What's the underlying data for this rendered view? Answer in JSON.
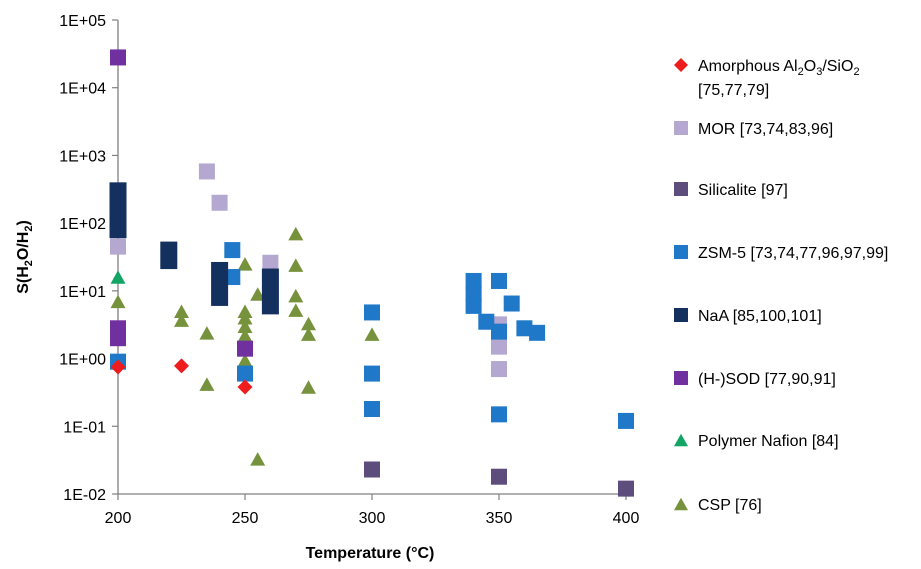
{
  "chart_data": {
    "type": "scatter",
    "title": "",
    "xlabel": "Temperature (°C)",
    "ylabel_parts": [
      "S(H",
      "2",
      "O/H",
      "2",
      ")"
    ],
    "xlim": [
      200,
      400
    ],
    "ylim": [
      0.01,
      100000
    ],
    "yscale": "log",
    "grid": false,
    "legend_position": "right",
    "x_ticks": [
      {
        "value": 200,
        "label": "200"
      },
      {
        "value": 250,
        "label": "250"
      },
      {
        "value": 300,
        "label": "300"
      },
      {
        "value": 350,
        "label": "350"
      },
      {
        "value": 400,
        "label": "400"
      }
    ],
    "y_ticks": [
      {
        "value": 0.01,
        "label": "1E-02"
      },
      {
        "value": 0.1,
        "label": "1E-01"
      },
      {
        "value": 1,
        "label": "1E+00"
      },
      {
        "value": 10,
        "label": "1E+01"
      },
      {
        "value": 100,
        "label": "1E+02"
      },
      {
        "value": 1000,
        "label": "1E+03"
      },
      {
        "value": 10000,
        "label": "1E+04"
      },
      {
        "value": 100000,
        "label": "1E+05"
      }
    ],
    "series": [
      {
        "id": "amorphous",
        "marker": "diamond",
        "color": "#ee1c1c",
        "legend_parts": [
          {
            "t": "Amorphous  Al",
            "sub": false
          },
          {
            "t": "2",
            "sub": true
          },
          {
            "t": "O",
            "sub": false
          },
          {
            "t": "3",
            "sub": true
          },
          {
            "t": "/SiO",
            "sub": false
          },
          {
            "t": "2",
            "sub": true
          }
        ],
        "legend_line2": "[75,77,79]",
        "points": [
          [
            200,
            0.75
          ],
          [
            225,
            0.78
          ],
          [
            250,
            0.38
          ]
        ]
      },
      {
        "id": "mor",
        "name": "MOR [73,74,83,96]",
        "marker": "square",
        "color": "#b4a7d0",
        "points": [
          [
            200,
            45
          ],
          [
            235,
            580
          ],
          [
            240,
            200
          ],
          [
            260,
            26
          ],
          [
            350,
            3.2
          ],
          [
            350,
            1.5
          ],
          [
            350,
            0.7
          ]
        ]
      },
      {
        "id": "silicalite",
        "name": "Silicalite [97]",
        "marker": "square",
        "color": "#5d4d7d",
        "points": [
          [
            300,
            0.023
          ],
          [
            350,
            0.018
          ],
          [
            400,
            0.012
          ]
        ]
      },
      {
        "id": "zsm5",
        "name": "ZSM-5 [73,74,77,96,97,99]",
        "marker": "square",
        "color": "#1f78c8",
        "points": [
          [
            200,
            0.9
          ],
          [
            245,
            40
          ],
          [
            245,
            16
          ],
          [
            250,
            0.6
          ],
          [
            300,
            4.8
          ],
          [
            300,
            0.6
          ],
          [
            300,
            0.18
          ],
          [
            340,
            14
          ],
          [
            340,
            9
          ],
          [
            340,
            6
          ],
          [
            345,
            3.5
          ],
          [
            350,
            14
          ],
          [
            350,
            2.5
          ],
          [
            350,
            0.15
          ],
          [
            355,
            6.5
          ],
          [
            360,
            2.8
          ],
          [
            365,
            2.4
          ],
          [
            400,
            0.12
          ]
        ]
      },
      {
        "id": "naa",
        "name": "NaA [85,100,101]",
        "marker": "bar",
        "color": "#14305e",
        "points": [
          [
            200,
            300,
            200
          ],
          [
            200,
            130,
            80
          ],
          [
            220,
            40,
            28
          ],
          [
            240,
            20,
            8
          ],
          [
            260,
            16,
            6
          ]
        ]
      },
      {
        "id": "hsod",
        "name": "(H-)SOD [77,90,91]",
        "marker": "square",
        "color": "#7030a0",
        "points": [
          [
            200,
            28000
          ],
          [
            200,
            2.8
          ],
          [
            200,
            2.0
          ],
          [
            250,
            1.4
          ]
        ]
      },
      {
        "id": "nafion",
        "name": "Polymer Nafion [84]",
        "marker": "triangle",
        "color": "#13a566",
        "points": [
          [
            200,
            16
          ]
        ]
      },
      {
        "id": "csp",
        "name": "CSP [76]",
        "marker": "triangle",
        "color": "#76923c",
        "points": [
          [
            200,
            7
          ],
          [
            225,
            5
          ],
          [
            225,
            3.7
          ],
          [
            235,
            2.4
          ],
          [
            235,
            0.42
          ],
          [
            250,
            25
          ],
          [
            250,
            5
          ],
          [
            250,
            4
          ],
          [
            250,
            3
          ],
          [
            250,
            2.2
          ],
          [
            250,
            0.95
          ],
          [
            255,
            9
          ],
          [
            255,
            0.033
          ],
          [
            270,
            70
          ],
          [
            270,
            24
          ],
          [
            270,
            8.5
          ],
          [
            270,
            5.2
          ],
          [
            275,
            3.3
          ],
          [
            275,
            2.3
          ],
          [
            275,
            0.38
          ],
          [
            300,
            2.3
          ]
        ]
      }
    ]
  }
}
